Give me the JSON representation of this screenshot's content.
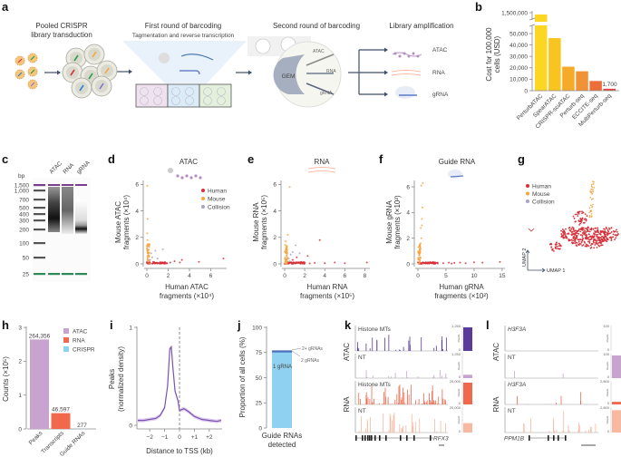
{
  "panel_labels": {
    "a": "a",
    "b": "b",
    "c": "c",
    "d": "d",
    "e": "e",
    "f": "f",
    "g": "g",
    "h": "h",
    "i": "i",
    "j": "j",
    "k": "k",
    "l": "l"
  },
  "workflow": {
    "steps": [
      {
        "title": "Pooled CRISPR",
        "title2": "library transduction"
      },
      {
        "title": "First round of barcoding",
        "subtitle": "Tagmentation and reverse transcription"
      },
      {
        "title": "Second round of barcoding"
      },
      {
        "title": "Library amplification"
      }
    ],
    "gem_label": "GEM",
    "bead_labels": [
      "ATAC",
      "RNA",
      "gRNA"
    ],
    "outputs": [
      "ATAC",
      "RNA",
      "gRNA"
    ]
  },
  "gel": {
    "unit": "bp",
    "ladder": [
      "1,500",
      "1,000",
      "700",
      "500",
      "400",
      "300",
      "200",
      "100",
      "50",
      "25"
    ],
    "lanes": [
      "ATAC",
      "RNA",
      "gRNA"
    ],
    "marker_color": "#7b3d8f"
  },
  "colors": {
    "human": "#d7303a",
    "mouse": "#f5a742",
    "collision": "#a8a4c2",
    "atac": "#c9a3cf",
    "rna": "#f0694d",
    "crispr": "#8fd1f0",
    "atac_dark": "#5a3a9a"
  },
  "chart_data": [
    {
      "id": "b",
      "type": "bar",
      "categories": [
        "PerturbATAC",
        "SpearATAC",
        "CRISPR-sciATAC",
        "Perturb-seq",
        "ECCITE-seq",
        "MultiPerturb-seq"
      ],
      "values": [
        1500000,
        46000,
        21000,
        17000,
        8500,
        1700
      ],
      "value_labels": [
        "",
        "",
        "",
        "",
        "",
        "1,700"
      ],
      "ylabel": [
        "Cost for 100,000",
        "cells (USD)"
      ],
      "yticks": [
        "0",
        "10,000",
        "20,000",
        "30,000",
        "40,000",
        "50,000",
        "1,500,000"
      ],
      "axis_break": true,
      "colors": [
        "#fbd623",
        "#f9c41f",
        "#f6aa2a",
        "#f29236",
        "#ec6f3a",
        "#e4463a"
      ]
    },
    {
      "id": "d",
      "type": "scatter",
      "title": "ATAC",
      "xlabel": [
        "Human ATAC",
        "fragments (×10⁴)"
      ],
      "ylabel": [
        "Mouse ATAC",
        "fragments (×10⁴)"
      ],
      "xticks": [
        0,
        2,
        4,
        6
      ],
      "yticks": [
        0,
        2,
        4,
        6
      ],
      "xlim": [
        0,
        7.5
      ],
      "ylim": [
        0,
        6.3
      ],
      "legend": [
        "Human",
        "Mouse",
        "Collision"
      ],
      "series": [
        {
          "name": "Human",
          "points": [
            [
              0.1,
              0.05
            ],
            [
              0.3,
              0.1
            ],
            [
              0.5,
              0.02
            ],
            [
              0.8,
              0.08
            ],
            [
              1,
              0.05
            ],
            [
              1.3,
              0.1
            ],
            [
              1.6,
              0.03
            ],
            [
              0.6,
              0.15
            ],
            [
              2.2,
              0.1
            ],
            [
              3.3,
              0.3
            ],
            [
              3.1,
              0.1
            ],
            [
              4.9,
              0.15
            ],
            [
              7.2,
              0.4
            ],
            [
              1.9,
              0.05
            ],
            [
              2.6,
              0.2
            ]
          ]
        },
        {
          "name": "Mouse",
          "points": [
            [
              0.05,
              0.3
            ],
            [
              0.08,
              0.6
            ],
            [
              0.03,
              1.0
            ],
            [
              0.1,
              1.5
            ],
            [
              0.06,
              1.8
            ],
            [
              0.04,
              2.3
            ],
            [
              0.07,
              3.4
            ],
            [
              0.05,
              5.9
            ],
            [
              0.1,
              0.8
            ],
            [
              0.02,
              1.3
            ]
          ]
        },
        {
          "name": "Collision",
          "points": [
            [
              0.3,
              0.3
            ],
            [
              0.5,
              0.5
            ],
            [
              0.8,
              1.0
            ],
            [
              1.0,
              0.4
            ],
            [
              0.4,
              0.8
            ],
            [
              1.5,
              1.1
            ]
          ]
        }
      ]
    },
    {
      "id": "e",
      "type": "scatter",
      "title": "RNA",
      "xlabel": [
        "Human RNA",
        "fragments (×10⁵)"
      ],
      "ylabel": [
        "Mouse RNA",
        "fragments (×10⁵)"
      ],
      "xticks": [
        0,
        2,
        4,
        6,
        8
      ],
      "yticks": [
        0,
        2,
        4,
        6
      ],
      "xlim": [
        0,
        8.5
      ],
      "ylim": [
        0,
        6.3
      ],
      "series": [
        {
          "name": "Human",
          "points": [
            [
              0.5,
              0.05
            ],
            [
              1,
              0.1
            ],
            [
              1.5,
              0.05
            ],
            [
              2,
              0.1
            ],
            [
              2.5,
              0.03
            ],
            [
              3,
              0.08
            ],
            [
              4,
              0.05
            ],
            [
              5,
              0.1
            ],
            [
              6,
              0.05
            ],
            [
              8.2,
              0.1
            ],
            [
              0.8,
              0.3
            ],
            [
              1.2,
              0.5
            ],
            [
              3.5,
              1.8
            ],
            [
              2.3,
              0.6
            ]
          ]
        },
        {
          "name": "Mouse",
          "points": [
            [
              0.1,
              0.3
            ],
            [
              0.15,
              0.8
            ],
            [
              0.2,
              1.3
            ],
            [
              0.1,
              1.7
            ],
            [
              0.3,
              2.2
            ],
            [
              0.2,
              1.0
            ],
            [
              0.5,
              5.8
            ],
            [
              0.25,
              0.5
            ]
          ]
        },
        {
          "name": "Collision",
          "points": [
            [
              0.4,
              0.4
            ],
            [
              0.6,
              0.7
            ],
            [
              0.8,
              0.9
            ],
            [
              1.1,
              1.4
            ],
            [
              0.5,
              0.2
            ],
            [
              1.5,
              0.8
            ]
          ]
        }
      ]
    },
    {
      "id": "f",
      "type": "scatter",
      "title": "Guide RNA",
      "xlabel": [
        "Human gRNA",
        "fragments (×10²)"
      ],
      "ylabel": [
        "Mouse gRNA",
        "fragments (×10²)"
      ],
      "xticks": [
        0,
        5,
        10,
        15
      ],
      "yticks": [
        0,
        2,
        4,
        6
      ],
      "xlim": [
        0,
        15.5
      ],
      "ylim": [
        0,
        6.5
      ],
      "series": [
        {
          "name": "Human",
          "points": [
            [
              0.5,
              0.05
            ],
            [
              1.5,
              0.08
            ],
            [
              2.5,
              0.05
            ],
            [
              3.5,
              0.1
            ],
            [
              4.5,
              0.05
            ],
            [
              5.5,
              0.1
            ],
            [
              6.5,
              0.08
            ],
            [
              7.5,
              0.1
            ],
            [
              8.5,
              0.05
            ],
            [
              10,
              0.12
            ],
            [
              11.5,
              0.1
            ],
            [
              14.6,
              0.15
            ],
            [
              3,
              0.02
            ],
            [
              6,
              0.03
            ]
          ]
        },
        {
          "name": "Mouse",
          "points": [
            [
              0.4,
              0.5
            ],
            [
              0.5,
              1.2
            ],
            [
              0.6,
              2.0
            ],
            [
              0.5,
              2.8
            ],
            [
              0.7,
              3.5
            ],
            [
              0.8,
              4.4
            ],
            [
              0.6,
              6.1
            ],
            [
              0.9,
              6.3
            ],
            [
              0.5,
              1.6
            ],
            [
              0.7,
              3.0
            ]
          ]
        },
        {
          "name": "Collision",
          "points": []
        }
      ]
    },
    {
      "id": "g",
      "type": "scatter",
      "xlabel": "UMAP 1",
      "ylabel": "UMAP 2",
      "legend": [
        "Human",
        "Mouse",
        "Collision"
      ]
    },
    {
      "id": "h",
      "type": "bar",
      "categories": [
        "Peaks",
        "Transcripts",
        "Guide RNAs"
      ],
      "values": [
        264356,
        46597,
        277
      ],
      "value_labels": [
        "264,356",
        "46,597",
        "277"
      ],
      "ylabel": "Counts (×10⁵)",
      "yticks": [
        "0",
        "1",
        "2",
        "3"
      ],
      "ylim": [
        0,
        300000
      ],
      "legend": [
        "ATAC",
        "RNA",
        "CRISPR"
      ]
    },
    {
      "id": "i",
      "type": "line",
      "xlabel": "Distance to TSS (kb)",
      "ylabel": [
        "Peaks",
        "(normalized density)"
      ],
      "xticks": [
        "−2",
        "−1",
        "0",
        "+1",
        "+2"
      ],
      "yticks": [
        "0",
        "1"
      ],
      "xlim": [
        -2.8,
        2.8
      ],
      "ylim": [
        0,
        1
      ],
      "x": [
        -2.8,
        -2.4,
        -2,
        -1.6,
        -1.3,
        -1.0,
        -0.8,
        -0.65,
        -0.55,
        -0.45,
        -0.3,
        -0.1,
        0,
        0.3,
        0.6,
        1,
        1.5,
        2,
        2.5,
        2.8
      ],
      "y": [
        0.05,
        0.05,
        0.06,
        0.07,
        0.1,
        0.18,
        0.4,
        0.78,
        0.8,
        0.6,
        0.35,
        0.25,
        0.15,
        0.17,
        0.14,
        0.09,
        0.06,
        0.05,
        0.04,
        0.05
      ]
    },
    {
      "id": "j",
      "type": "bar",
      "stacked": true,
      "categories": [
        "Guide RNAs detected"
      ],
      "xlabel": [
        "Guide RNAs",
        "detected"
      ],
      "ylabel": "Proportion of all cells (%)",
      "yticks": [
        "0",
        "25",
        "50",
        "75",
        "100"
      ],
      "ylim": [
        0,
        100
      ],
      "series": [
        {
          "name": "1 gRNA",
          "values": [
            75
          ]
        },
        {
          "name": "2 gRNAs",
          "values": [
            1.5
          ]
        },
        {
          "name": "2+ gRNAs",
          "values": [
            0.5
          ]
        }
      ]
    },
    {
      "id": "k",
      "type": "track",
      "row_labels": [
        "ATAC",
        "RNA"
      ],
      "tracks": [
        {
          "label": "Histone MTs",
          "max": "1,250",
          "reads_fraction": 1.0,
          "color": "#5a3a9a"
        },
        {
          "label": "NT",
          "max": "1,250",
          "reads_fraction": 0.15,
          "color": "#c9a3cf"
        },
        {
          "label": "Histone MTs",
          "max": "20,000",
          "reads_fraction": 1.0,
          "color": "#f0694d"
        },
        {
          "label": "NT",
          "max": "20,000",
          "reads_fraction": 0.4,
          "color": "#f9b8a1"
        }
      ],
      "reads_label": "Reads",
      "zero": "0",
      "gene": "RFX3"
    },
    {
      "id": "l",
      "type": "track",
      "row_labels": [
        "ATAC",
        "RNA"
      ],
      "tracks": [
        {
          "label": "H3F3A",
          "max": "100",
          "reads_fraction": 0.0,
          "color": "#c9a3cf"
        },
        {
          "label": "NT",
          "max": "100",
          "reads_fraction": 1.0,
          "color": "#c9a3cf"
        },
        {
          "label": "H3F3A",
          "max": "2,800",
          "reads_fraction": 0.12,
          "color": "#f0694d"
        },
        {
          "label": "NT",
          "max": "2,800",
          "reads_fraction": 0.95,
          "color": "#f9b8a1"
        }
      ],
      "reads_label": "Reads",
      "zero": "0",
      "gene": "PPM1B"
    }
  ]
}
